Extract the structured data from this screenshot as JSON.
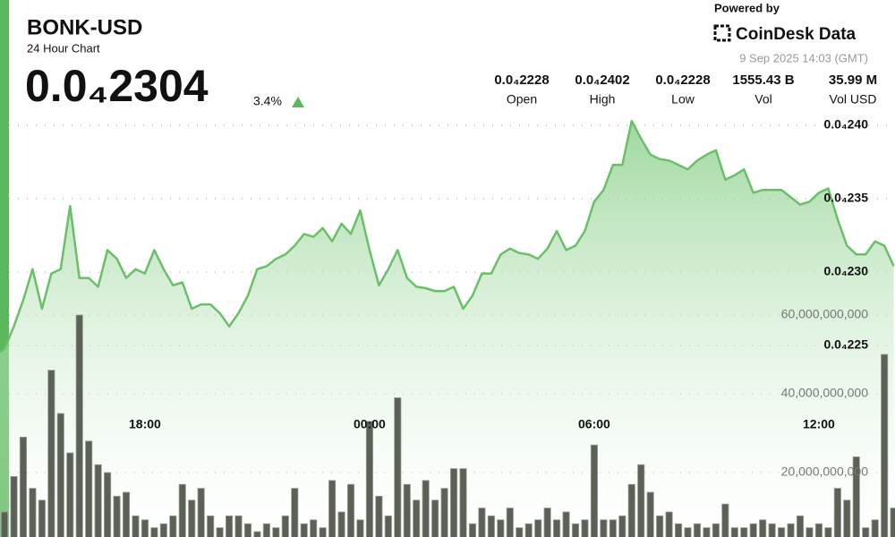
{
  "header": {
    "title": "BONK-USD",
    "subtitle": "24 Hour Chart",
    "price": "0.0₄2304",
    "change": "3.4%",
    "powered_by": "Powered by",
    "brand": "CoinDesk Data",
    "timestamp": "9 Sep 2025 14:03 (GMT)",
    "stats": [
      {
        "value": "0.0₄2228",
        "label": "Open"
      },
      {
        "value": "0.0₄2402",
        "label": "High"
      },
      {
        "value": "0.0₄2228",
        "label": "Low"
      },
      {
        "value": "1555.43 B",
        "label": "Vol"
      },
      {
        "value": "35.99 M",
        "label": "Vol USD"
      }
    ]
  },
  "chart_data": {
    "type": "line",
    "grid": true,
    "x": [
      null,
      null,
      null,
      null,
      null,
      null,
      null,
      null,
      null,
      null,
      null,
      null,
      null,
      null,
      null,
      null,
      "18:00",
      null,
      null,
      null,
      null,
      null,
      null,
      null,
      null,
      null,
      null,
      null,
      null,
      null,
      null,
      null,
      null,
      null,
      null,
      null,
      null,
      null,
      null,
      null,
      "00:00",
      null,
      null,
      null,
      null,
      null,
      null,
      null,
      null,
      null,
      null,
      null,
      null,
      null,
      null,
      null,
      null,
      null,
      null,
      null,
      null,
      null,
      null,
      null,
      "06:00",
      null,
      null,
      null,
      null,
      null,
      null,
      null,
      null,
      null,
      null,
      null,
      null,
      null,
      null,
      null,
      null,
      null,
      null,
      null,
      null,
      null,
      null,
      null,
      "12:00",
      null,
      null,
      null,
      null,
      null,
      null,
      null,
      null
    ],
    "xticks": [
      "18:00",
      "00:00",
      "06:00",
      "12:00"
    ],
    "ylim": [
      2.25e-05,
      2.4e-05
    ],
    "yticks": [
      {
        "value": 2.4e-05,
        "label": "0.0₄240"
      },
      {
        "value": 2.35e-05,
        "label": "0.0₄235"
      },
      {
        "value": 2.3e-05,
        "label": "0.0₄230"
      },
      {
        "value": 2.25e-05,
        "label": "0.0₄225"
      }
    ],
    "y2lim": [
      0,
      80000000000
    ],
    "y2ticks": [
      {
        "value": 20000000000,
        "label": "20,000,000,000"
      },
      {
        "value": 40000000000,
        "label": "40,000,000,000"
      },
      {
        "value": 60000000000,
        "label": "60,000,000,000"
      }
    ],
    "series": [
      {
        "color": "#6abf69",
        "values": [
          2.243e-05,
          2.248e-05,
          2.263e-05,
          2.281e-05,
          2.302e-05,
          2.275e-05,
          2.299e-05,
          2.302e-05,
          2.345e-05,
          2.296e-05,
          2.296e-05,
          2.29e-05,
          2.315e-05,
          2.309e-05,
          2.296e-05,
          2.302e-05,
          2.299e-05,
          2.315e-05,
          2.302e-05,
          2.291e-05,
          2.293e-05,
          2.275e-05,
          2.278e-05,
          2.278e-05,
          2.272e-05,
          2.263e-05,
          2.272e-05,
          2.284e-05,
          2.302e-05,
          2.304e-05,
          2.309e-05,
          2.312e-05,
          2.318e-05,
          2.326e-05,
          2.324e-05,
          2.33e-05,
          2.321e-05,
          2.333e-05,
          2.326e-05,
          2.342e-05,
          2.315e-05,
          2.291e-05,
          2.302e-05,
          2.315e-05,
          2.296e-05,
          2.29e-05,
          2.289e-05,
          2.287e-05,
          2.287e-05,
          2.29e-05,
          2.275e-05,
          2.284e-05,
          2.299e-05,
          2.299e-05,
          2.312e-05,
          2.316e-05,
          2.313e-05,
          2.312e-05,
          2.309e-05,
          2.316e-05,
          2.328e-05,
          2.315e-05,
          2.318e-05,
          2.328e-05,
          2.348e-05,
          2.356e-05,
          2.373e-05,
          2.373e-05,
          2.403e-05,
          2.391e-05,
          2.38e-05,
          2.377e-05,
          2.376e-05,
          2.373e-05,
          2.37e-05,
          2.376e-05,
          2.38e-05,
          2.383e-05,
          2.363e-05,
          2.366e-05,
          2.37e-05,
          2.354e-05,
          2.356e-05,
          2.356e-05,
          2.356e-05,
          2.351e-05,
          2.346e-05,
          2.348e-05,
          2.354e-05,
          2.357e-05,
          2.336e-05,
          2.318e-05,
          2.312e-05,
          2.312e-05,
          2.321e-05,
          2.318e-05,
          2.304e-05
        ]
      },
      {
        "type": "bar",
        "axis": "y2",
        "color": "#5b6157",
        "values": [
          26000000000.0,
          10000000000.0,
          19000000000.0,
          29000000000.0,
          16000000000.0,
          13000000000.0,
          46000000000.0,
          35000000000.0,
          25000000000.0,
          60000000000.0,
          28000000000.0,
          22000000000.0,
          20000000000.0,
          14000000000.0,
          15000000000.0,
          9000000000.0,
          8000000000.0,
          6000000000.0,
          7000000000.0,
          9000000000.0,
          17000000000.0,
          13000000000.0,
          16000000000.0,
          9000000000.0,
          6000000000.0,
          9000000000.0,
          9000000000.0,
          7000000000.0,
          5000000000.0,
          7000000000.0,
          6000000000.0,
          9000000000.0,
          16000000000.0,
          7000000000.0,
          8000000000.0,
          6000000000.0,
          18000000000.0,
          10000000000.0,
          17000000000.0,
          8000000000.0,
          33000000000.0,
          14000000000.0,
          9000000000.0,
          39000000000.0,
          17000000000.0,
          13000000000.0,
          18000000000.0,
          13000000000.0,
          16000000000.0,
          21000000000.0,
          21000000000.0,
          7000000000.0,
          11000000000.0,
          9000000000.0,
          8000000000.0,
          11000000000.0,
          6000000000.0,
          7000000000.0,
          8000000000.0,
          11000000000.0,
          8000000000.0,
          10000000000.0,
          7000000000.0,
          8000000000.0,
          27000000000.0,
          8000000000.0,
          8000000000.0,
          9000000000.0,
          17000000000.0,
          22000000000.0,
          15000000000.0,
          9000000000.0,
          10000000000.0,
          7000000000.0,
          6000000000.0,
          7000000000.0,
          6000000000.0,
          7000000000.0,
          12000000000.0,
          6000000000.0,
          6000000000.0,
          7000000000.0,
          8000000000.0,
          7000000000.0,
          6000000000.0,
          7000000000.0,
          9000000000.0,
          6000000000.0,
          7000000000.0,
          6000000000.0,
          16000000000.0,
          13000000000.0,
          24000000000.0,
          6000000000.0,
          8000000000.0,
          50000000000.0,
          11000000000.0
        ]
      }
    ]
  }
}
